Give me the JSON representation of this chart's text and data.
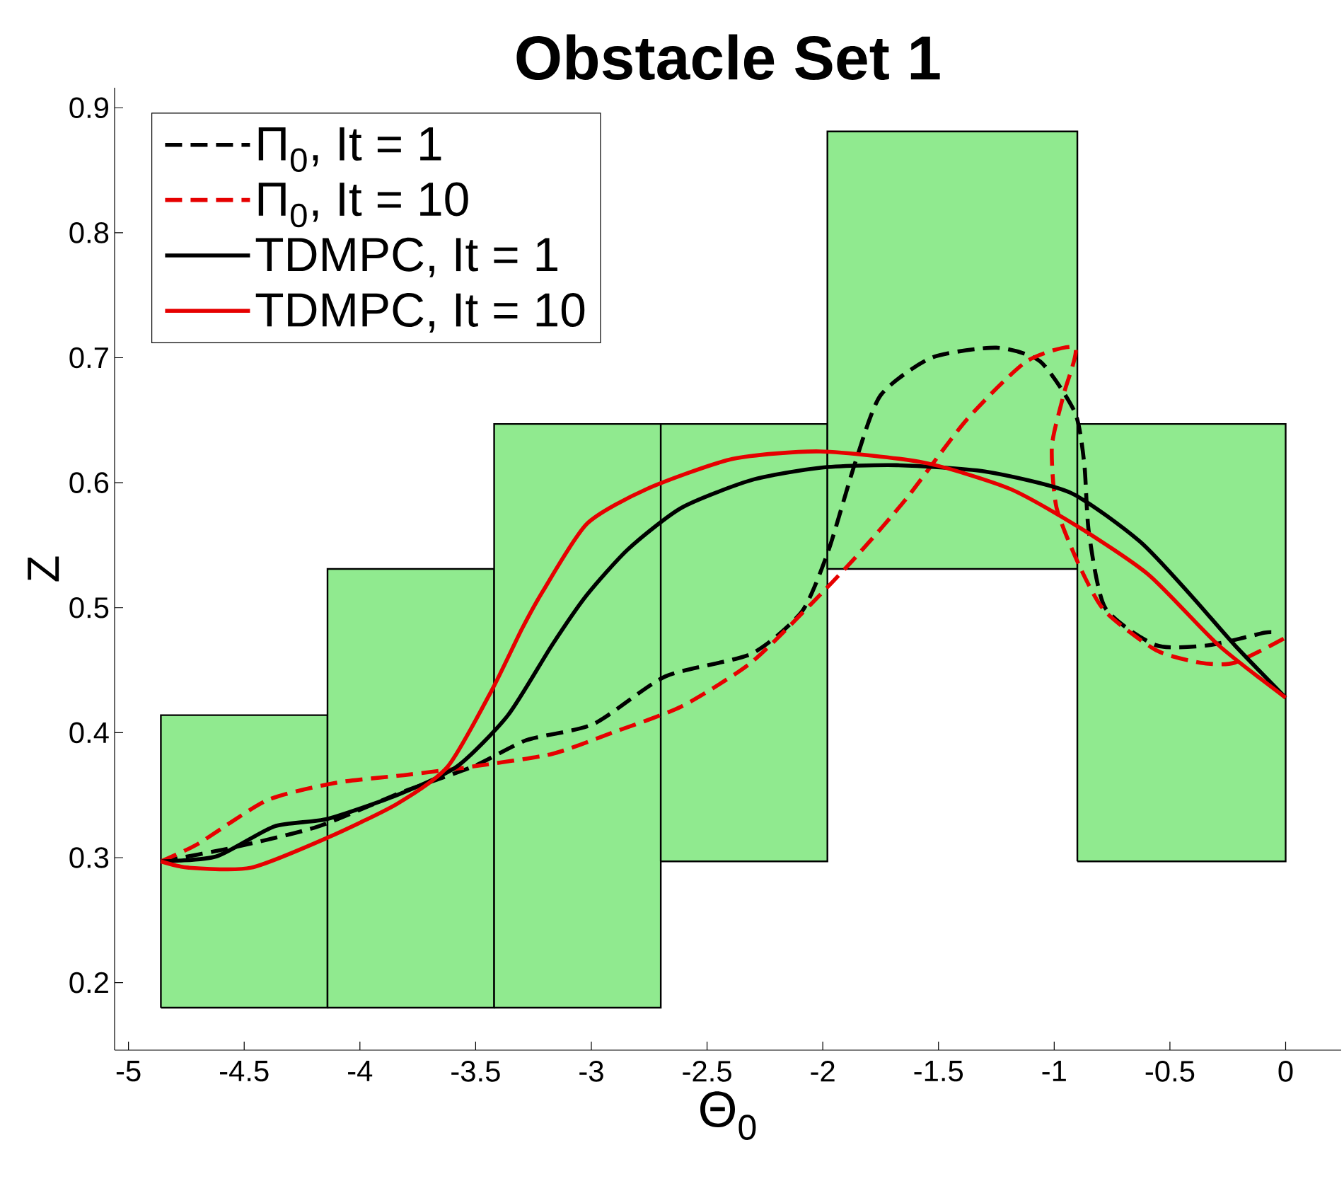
{
  "chart_data": {
    "type": "line",
    "title": "Obstacle Set 1",
    "xlabel": "Θ$_{0}$",
    "ylabel": "Z",
    "xlim": [
      -5.06,
      0.24
    ],
    "ylim": [
      0.146,
      0.916
    ],
    "xticks": [
      -5,
      -4.5,
      -4,
      -3.5,
      -3,
      -2.5,
      -2,
      -1.5,
      -1,
      -0.5,
      0
    ],
    "yticks": [
      0.2,
      0.3,
      0.4,
      0.5,
      0.6,
      0.7,
      0.8,
      0.9
    ],
    "legend": "top left",
    "series": [
      {
        "type": "histogram",
        "color": "#90ea8f",
        "bins": [
          -4.86,
          -4.14,
          -3.42,
          -2.7,
          -1.98,
          -0.9,
          0
        ],
        "base": [
          0.18,
          0.18,
          0.18,
          0.297,
          0.531,
          0.297
        ],
        "values": [
          0.234,
          0.351,
          0.467,
          0.35,
          0.35,
          0.35
        ]
      },
      {
        "name": "Π$_{0}$, It = 1",
        "color": "#000000",
        "line_style": "dashed",
        "x": [
          -4.86,
          -4.55,
          -4.18,
          -3.81,
          -3.51,
          -3.28,
          -2.99,
          -2.68,
          -2.31,
          -2.09,
          -1.975,
          -1.86,
          -1.75,
          -1.53,
          -1.25,
          -1.06,
          -0.91,
          -0.87,
          -0.85,
          -0.78,
          -0.56,
          -0.33,
          -0.09,
          -0.04
        ],
        "values": [
          0.297,
          0.308,
          0.325,
          0.353,
          0.373,
          0.394,
          0.407,
          0.445,
          0.463,
          0.497,
          0.546,
          0.616,
          0.67,
          0.7,
          0.708,
          0.697,
          0.656,
          0.615,
          0.56,
          0.5,
          0.47,
          0.47,
          0.48,
          0.48
        ]
      },
      {
        "name": "Π$_{0}$, It = 10",
        "color": "#e60000",
        "line_style": "dashed",
        "x": [
          -4.86,
          -4.7,
          -4.4,
          -4.1,
          -3.81,
          -3.51,
          -3.17,
          -2.91,
          -2.61,
          -2.31,
          -2.05,
          -1.86,
          -1.64,
          -1.38,
          -1.12,
          -0.91,
          -0.96,
          -1.01,
          -0.99,
          -0.89,
          -0.78,
          -0.56,
          -0.37,
          -0.22,
          0
        ],
        "values": [
          0.297,
          0.311,
          0.346,
          0.36,
          0.366,
          0.373,
          0.383,
          0.4,
          0.421,
          0.456,
          0.503,
          0.54,
          0.587,
          0.65,
          0.697,
          0.708,
          0.67,
          0.629,
          0.58,
          0.533,
          0.497,
          0.466,
          0.456,
          0.456,
          0.476
        ]
      },
      {
        "name": "TDMPC, It = 1",
        "color": "#000000",
        "line_style": "solid",
        "x": [
          -4.86,
          -4.62,
          -4.37,
          -4.14,
          -3.84,
          -3.58,
          -3.36,
          -3.17,
          -3.02,
          -2.84,
          -2.61,
          -2.31,
          -2.01,
          -1.68,
          -1.3,
          -0.93,
          -0.63,
          -0.41,
          -0.22,
          0
        ],
        "values": [
          0.297,
          0.301,
          0.325,
          0.331,
          0.35,
          0.373,
          0.414,
          0.47,
          0.51,
          0.547,
          0.58,
          0.602,
          0.612,
          0.614,
          0.609,
          0.592,
          0.553,
          0.51,
          0.47,
          0.428
        ]
      },
      {
        "name": "TDMPC, It = 10",
        "color": "#e60000",
        "line_style": "solid",
        "x": [
          -4.86,
          -4.74,
          -4.47,
          -4.14,
          -3.84,
          -3.62,
          -3.43,
          -3.3,
          -3.21,
          -3.02,
          -2.76,
          -2.39,
          -2.01,
          -1.56,
          -1.19,
          -0.89,
          -0.59,
          -0.29,
          0
        ],
        "values": [
          0.297,
          0.292,
          0.292,
          0.316,
          0.343,
          0.373,
          0.434,
          0.483,
          0.513,
          0.567,
          0.595,
          0.619,
          0.625,
          0.616,
          0.595,
          0.564,
          0.526,
          0.47,
          0.428
        ]
      }
    ]
  }
}
